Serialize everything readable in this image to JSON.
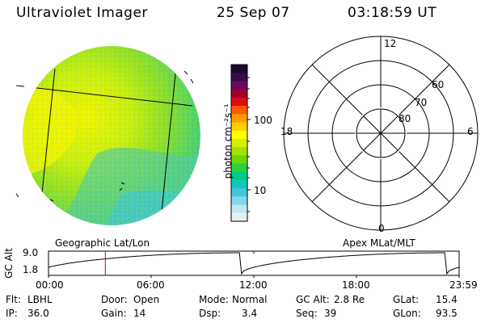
{
  "header": {
    "instrument": "Ultraviolet Imager",
    "date": "25 Sep 07",
    "time": "03:18:59 UT"
  },
  "colorbar": {
    "unit_label": "photon cm⁻²s⁻¹",
    "ticks": [
      "100",
      "10"
    ],
    "colors_top_to_bottom": [
      "#1a0a2a",
      "#3a0a4a",
      "#6a0a5a",
      "#a3002e",
      "#e00a10",
      "#ff5a00",
      "#ff9a00",
      "#ffcc00",
      "#ffff00",
      "#d8f000",
      "#a8e000",
      "#6ad800",
      "#2ad23a",
      "#00cc88",
      "#10c8b8",
      "#40c8d8",
      "#80d8e8",
      "#c0e8f0",
      "#e8f0f4"
    ]
  },
  "image_panel": {
    "label": "Geographic Lat/Lon",
    "palette": {
      "yellow": "#f0f000",
      "lime": "#b8ec00",
      "green": "#78dc2a",
      "cyan": "#30ccc0"
    }
  },
  "polar_panel": {
    "label": "Apex MLat/MLT",
    "mlt_labels": {
      "top": "12",
      "left": "18",
      "right": "6",
      "bottom": "0"
    },
    "lat_labels": [
      "80",
      "70",
      "60"
    ]
  },
  "altitude_plot": {
    "ylabel": "GC Alt",
    "yticks": [
      "9.0",
      "1.8"
    ],
    "xticks": [
      "00:00",
      "06:00",
      "12:00",
      "18:00",
      "23:59"
    ],
    "marker_color": "#cc0000",
    "marker_time_hours": 3.32
  },
  "info": {
    "row1": [
      {
        "label": "Flt:",
        "value": "LBHL"
      },
      {
        "label": "Door:",
        "value": "Open"
      },
      {
        "label": "Mode:",
        "value": "Normal"
      },
      {
        "label": "GC Alt:",
        "value": "2.8 Re"
      },
      {
        "label": "GLat:",
        "value": "15.4"
      }
    ],
    "row2": [
      {
        "label": "IP:",
        "value": "36.0"
      },
      {
        "label": "Gain:",
        "value": "14"
      },
      {
        "label": "Dsp:",
        "value": "3.4"
      },
      {
        "label": "Seq:",
        "value": "39"
      },
      {
        "label": "GLon:",
        "value": "93.5"
      }
    ]
  }
}
